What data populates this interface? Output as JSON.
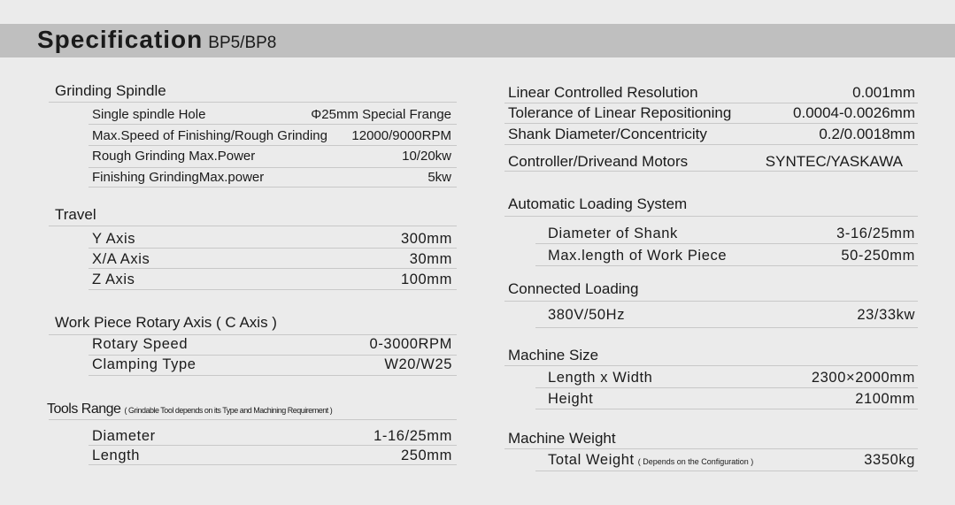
{
  "header": {
    "title": "Specification",
    "model": "BP5/BP8"
  },
  "left": {
    "grinding_spindle": {
      "title": "Grinding Spindle",
      "rows": [
        {
          "label": "Single spindle Hole",
          "value": "Φ25mm Special Frange"
        },
        {
          "label": "Max.Speed of Finishing/Rough Grinding",
          "value": "12000/9000RPM"
        },
        {
          "label": "Rough Grinding Max.Power",
          "value": "10/20kw"
        },
        {
          "label": "Finishing GrindingMax.power",
          "value": "5kw"
        }
      ]
    },
    "travel": {
      "title": "Travel",
      "rows": [
        {
          "label": "Y Axis",
          "value": "300mm"
        },
        {
          "label": "X/A Axis",
          "value": "30mm"
        },
        {
          "label": "Z Axis",
          "value": "100mm"
        }
      ]
    },
    "rotary_axis": {
      "title": "Work Piece Rotary Axis ( C Axis )",
      "rows": [
        {
          "label": "Rotary Speed",
          "value": "0-3000RPM"
        },
        {
          "label": "Clamping Type",
          "value": "W20/W25"
        }
      ]
    },
    "tools_range": {
      "title": "Tools Range",
      "note": "( Grindable Tool depends on its Type and Machining Requirement )",
      "rows": [
        {
          "label": "Diameter",
          "value": "1-16/25mm"
        },
        {
          "label": "Length",
          "value": "250mm"
        }
      ]
    }
  },
  "right": {
    "general": {
      "rows": [
        {
          "label": "Linear Controlled Resolution",
          "value": "0.001mm"
        },
        {
          "label": "Tolerance of Linear Repositioning",
          "value": "0.0004-0.0026mm"
        },
        {
          "label": "Shank Diameter/Concentricity",
          "value": "0.2/0.0018mm"
        },
        {
          "label": "Controller/Driveand Motors",
          "value": "SYNTEC/YASKAWA"
        }
      ]
    },
    "auto_loading": {
      "title": "Automatic Loading System",
      "rows": [
        {
          "label": "Diameter of Shank",
          "value": "3-16/25mm"
        },
        {
          "label": "Max.length of Work Piece",
          "value": "50-250mm"
        }
      ]
    },
    "connected_loading": {
      "title": "Connected Loading",
      "rows": [
        {
          "label": "380V/50Hz",
          "value": "23/33kw"
        }
      ]
    },
    "machine_size": {
      "title": "Machine Size",
      "rows": [
        {
          "label": "Length x Width",
          "value": "2300×2000mm"
        },
        {
          "label": "Height",
          "value": "2100mm"
        }
      ]
    },
    "machine_weight": {
      "title": "Machine Weight",
      "rows": [
        {
          "label": "Total Weight",
          "note": "( Depends on the Configuration )",
          "value": "3350kg"
        }
      ]
    }
  }
}
